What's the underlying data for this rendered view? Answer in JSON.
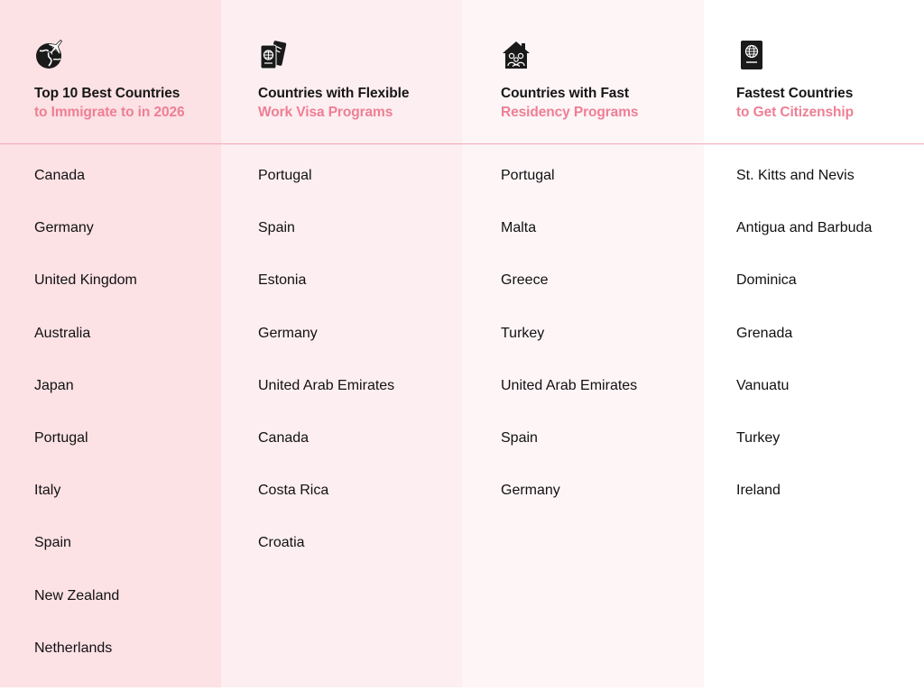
{
  "columns": [
    {
      "title_line1": "Top 10 Best Countries",
      "title_line2": "to Immigrate to in 2026",
      "icon": "globe-plane-icon",
      "items": [
        "Canada",
        "Germany",
        "United Kingdom",
        "Australia",
        "Japan",
        "Portugal",
        "Italy",
        "Spain",
        "New Zealand",
        "Netherlands"
      ]
    },
    {
      "title_line1": "Countries with Flexible",
      "title_line2": "Work Visa Programs",
      "icon": "passport-ticket-icon",
      "items": [
        "Portugal",
        "Spain",
        "Estonia",
        "Germany",
        "United Arab Emirates",
        "Canada",
        "Costa Rica",
        "Croatia"
      ]
    },
    {
      "title_line1": "Countries with Fast",
      "title_line2": "Residency Programs",
      "icon": "house-family-icon",
      "items": [
        "Portugal",
        "Malta",
        "Greece",
        "Turkey",
        "United Arab Emirates",
        "Spain",
        "Germany"
      ]
    },
    {
      "title_line1": "Fastest Countries",
      "title_line2": "to Get Citizenship",
      "icon": "passport-icon",
      "items": [
        "St. Kitts and Nevis",
        "Antigua and Barbuda",
        "Dominica",
        "Grenada",
        "Vanuatu",
        "Turkey",
        " Ireland"
      ]
    }
  ],
  "colors": {
    "accent": "#ee7f94",
    "col1_bg": "#fce1e5",
    "col2_bg": "#fdeef1",
    "col3_bg": "#fef5f7",
    "col4_bg": "#ffffff",
    "divider": "#f2a6b3"
  }
}
